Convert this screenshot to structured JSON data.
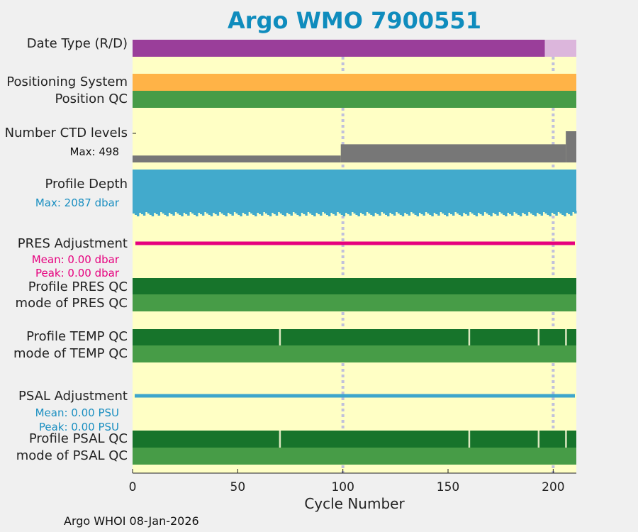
{
  "title": "Argo WMO 7900551",
  "footer": "Argo WHOI 08-Jan-2026",
  "colors": {
    "background": "#ffffc5",
    "page": "#f0f0f0",
    "title": "#0f8cbd",
    "date_realtime": "#9a3e9a",
    "date_delayed": "#dcb6dc",
    "positioning": "#ffb347",
    "qc_mode": "#479c47",
    "qc_profile": "#17742b",
    "ctd": "#777777",
    "depth": "#42aacc",
    "pres_adj": "#e6007e",
    "psal_adj": "#3ea6cc",
    "grid": "#c0c0dc"
  },
  "rows": {
    "date_type": "Date Type (R/D)",
    "positioning": "Positioning System",
    "position_qc": "Position QC",
    "ctd_levels": "Number CTD levels",
    "ctd_max": "Max: 498",
    "profile_depth": "Profile Depth",
    "depth_max": "Max: 2087 dbar",
    "pres_adj": "PRES Adjustment",
    "pres_mean": "Mean: 0.00 dbar",
    "pres_peak": "Peak: 0.00 dbar",
    "pres_qc": "Profile PRES QC",
    "pres_mode": "mode of PRES QC",
    "temp_qc": "Profile TEMP QC",
    "temp_mode": "mode of TEMP QC",
    "psal_adj": "PSAL Adjustment",
    "psal_mean": "Mean: 0.00 PSU",
    "psal_peak": "Peak: 0.00 PSU",
    "psal_qc": "Profile PSAL QC",
    "psal_mode": "mode of PSAL QC"
  },
  "chart_data": {
    "type": "bar",
    "title": "Argo WMO 7900551",
    "xlabel": "Cycle Number",
    "xlim": [
      0,
      211
    ],
    "xticks": [
      0,
      50,
      100,
      150,
      200
    ],
    "grid_x": [
      100,
      200
    ],
    "date_type": {
      "realtime_cycles": [
        1,
        196
      ],
      "delayed_cycles": [
        197,
        211
      ]
    },
    "ctd_levels": {
      "max": 498,
      "segments": [
        {
          "from": 1,
          "to": 99,
          "value": 110
        },
        {
          "from": 100,
          "to": 206,
          "value": 290
        },
        {
          "from": 207,
          "to": 211,
          "value": 498
        }
      ]
    },
    "profile_depth": {
      "max": 2087,
      "unit": "dbar",
      "typical": 2000
    },
    "pres_adjustment": {
      "mean": 0.0,
      "peak": 0.0,
      "unit": "dbar"
    },
    "psal_adjustment": {
      "mean": 0.0,
      "peak": 0.0,
      "unit": "PSU"
    },
    "temp_qc_breaks": [
      70,
      160,
      193,
      206
    ],
    "psal_qc_breaks": [
      70,
      160,
      193,
      206
    ]
  }
}
